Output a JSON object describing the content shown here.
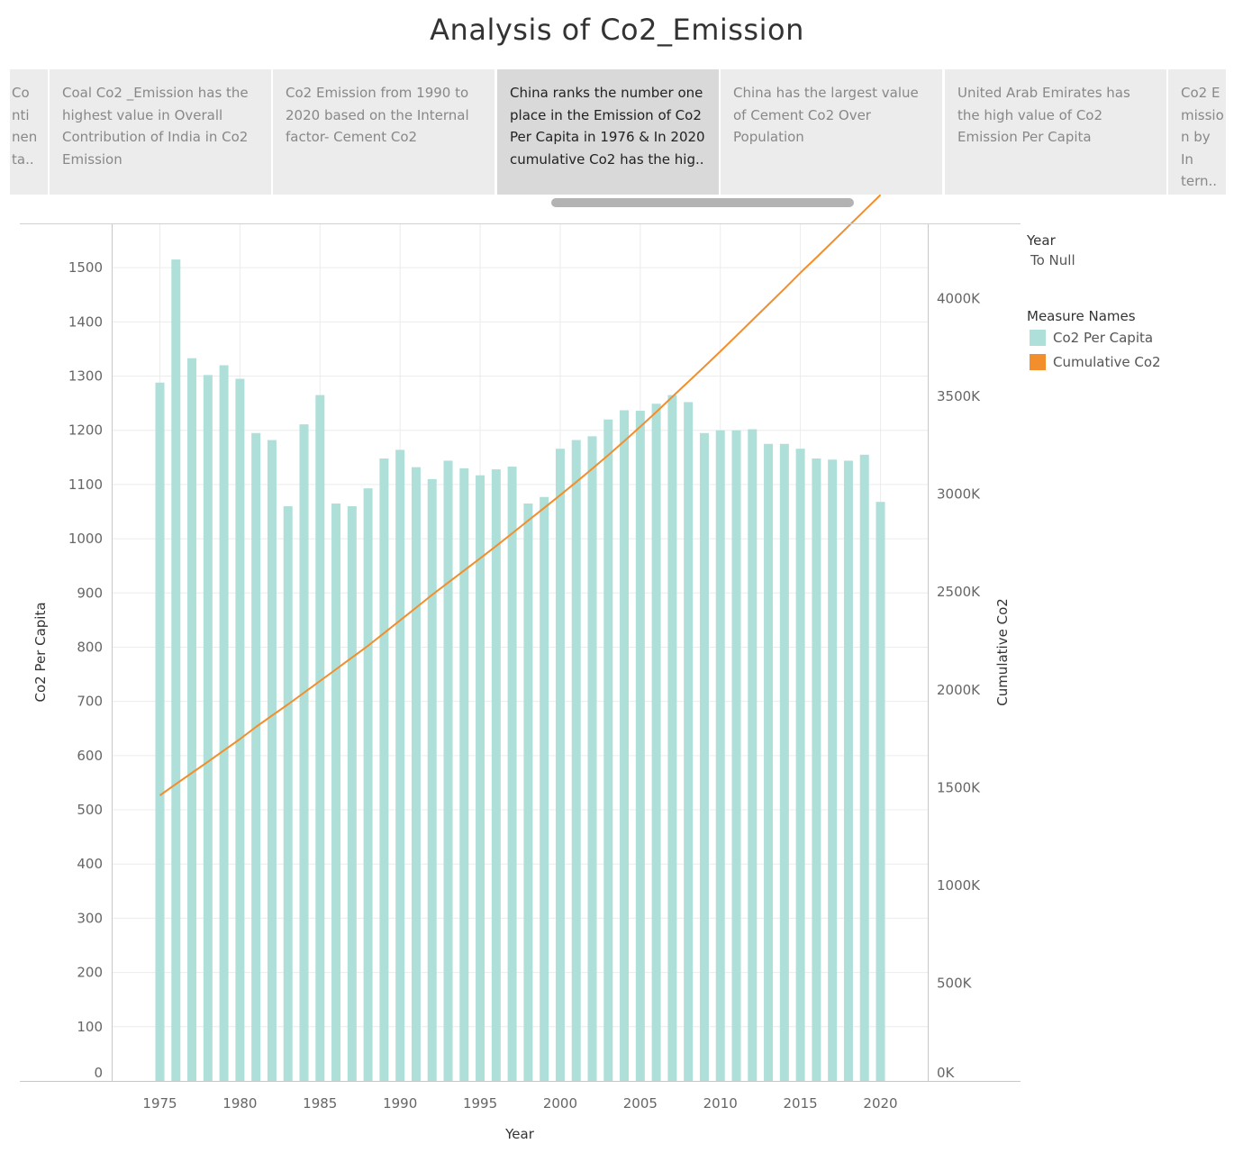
{
  "title": "Analysis of Co2_Emission",
  "story_points": [
    {
      "text": "Co nti nen ta..",
      "active": false
    },
    {
      "text": "Coal Co2 _Emission has the highest value in Overall Contribution of India in Co2 Emission",
      "active": false
    },
    {
      "text": "Co2 Emission from 1990 to 2020  based on the Internal factor- Cement Co2",
      "active": false
    },
    {
      "text": "China ranks the number one place in the Emission of Co2 Per Capita in 1976 & In 2020 cumulative Co2 has the hig..",
      "active": true
    },
    {
      "text": "China has the largest value of Cement Co2 Over Population",
      "active": false
    },
    {
      "text": "United Arab Emirates has the high value  of Co2 Emission Per Capita",
      "active": false
    },
    {
      "text": "Co2 E missio n by In tern..",
      "active": false
    }
  ],
  "legend": {
    "year_header": "Year",
    "year_value": "To Null",
    "measure_header": "Measure Names",
    "items": [
      {
        "label": "Co2 Per Capita",
        "color": "#afdfd9"
      },
      {
        "label": "Cumulative Co2",
        "color": "#f28e2b"
      }
    ]
  },
  "chart_data": {
    "type": "bar",
    "xlabel": "Year",
    "ylabel": "Co2 Per Capita",
    "y2label": "Cumulative Co2",
    "ylim": [
      0,
      1580
    ],
    "y2lim": [
      0,
      4380
    ],
    "yticks": [
      "0",
      "100",
      "200",
      "300",
      "400",
      "500",
      "600",
      "700",
      "800",
      "900",
      "1000",
      "1100",
      "1200",
      "1300",
      "1400",
      "1500"
    ],
    "y2ticks": [
      "0K",
      "500K",
      "1000K",
      "1500K",
      "2000K",
      "2500K",
      "3000K",
      "3500K",
      "4000K"
    ],
    "xticks": [
      "1975",
      "1980",
      "1985",
      "1990",
      "1995",
      "2000",
      "2005",
      "2010",
      "2015",
      "2020"
    ],
    "x": [
      1975,
      1976,
      1977,
      1978,
      1979,
      1980,
      1981,
      1982,
      1983,
      1984,
      1985,
      1986,
      1987,
      1988,
      1989,
      1990,
      1991,
      1992,
      1993,
      1994,
      1995,
      1996,
      1997,
      1998,
      1999,
      2000,
      2001,
      2002,
      2003,
      2004,
      2005,
      2006,
      2007,
      2008,
      2009,
      2010,
      2011,
      2012,
      2013,
      2014,
      2015,
      2016,
      2017,
      2018,
      2019,
      2020
    ],
    "series": [
      {
        "name": "Co2 Per Capita",
        "type": "bar",
        "color": "#afdfd9",
        "values": [
          1288,
          1515,
          1333,
          1302,
          1320,
          1295,
          1195,
          1182,
          1060,
          1211,
          1265,
          1065,
          1060,
          1093,
          1148,
          1164,
          1132,
          1110,
          1144,
          1130,
          1117,
          1128,
          1133,
          1065,
          1077,
          1166,
          1182,
          1189,
          1220,
          1237,
          1236,
          1249,
          1265,
          1252,
          1195,
          1200,
          1200,
          1202,
          1175,
          1175,
          1166,
          1148,
          1146,
          1144,
          1155,
          1068
        ]
      },
      {
        "name": "Cumulative Co2",
        "type": "line",
        "axis": "right",
        "color": "#f28e2b",
        "values": [
          1460,
          1518,
          1575,
          1632,
          1690,
          1748,
          1810,
          1868,
          1925,
          1985,
          2045,
          2105,
          2165,
          2225,
          2290,
          2355,
          2420,
          2485,
          2548,
          2610,
          2672,
          2735,
          2800,
          2865,
          2930,
          2995,
          3062,
          3130,
          3200,
          3272,
          3345,
          3420,
          3498,
          3575,
          3652,
          3730,
          3810,
          3890,
          3970,
          4050,
          4132,
          4210,
          4290,
          4370,
          4450,
          4530
        ]
      }
    ]
  }
}
